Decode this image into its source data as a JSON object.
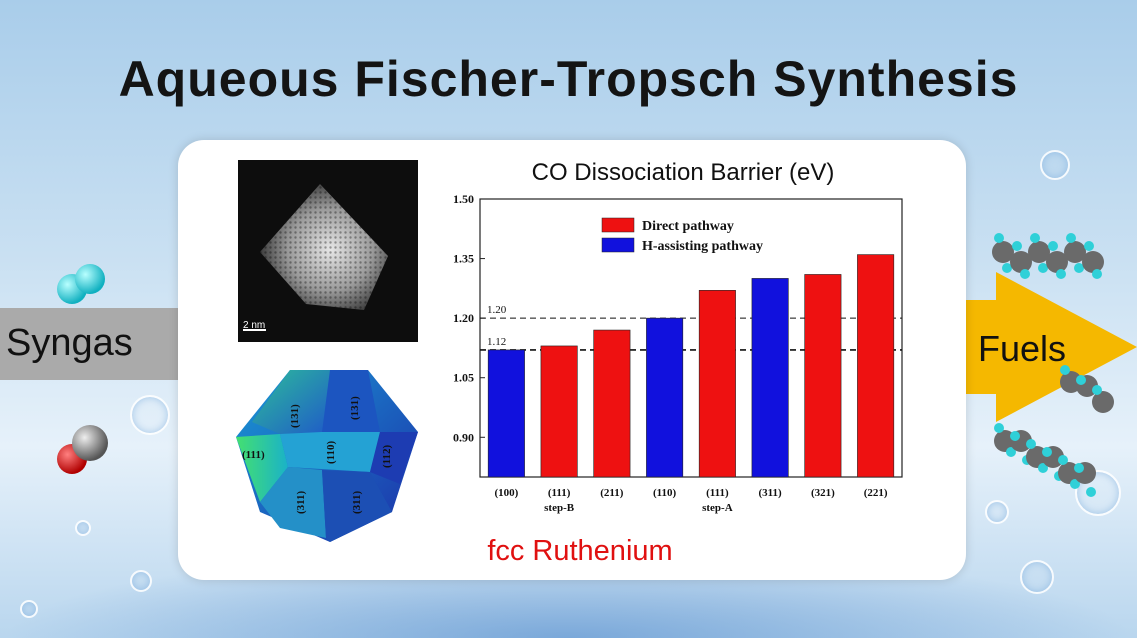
{
  "title": "Aqueous Fischer-Tropsch Synthesis",
  "left": {
    "label": "Syngas"
  },
  "right": {
    "label": "Fuels"
  },
  "tem": {
    "scale_label": "2 nm"
  },
  "crystal": {
    "facets": [
      "(111)",
      "(131)",
      "(131)",
      "(110)",
      "(112)",
      "(311)",
      "(311)"
    ]
  },
  "bottom_label": "fcc Ruthenium",
  "colors": {
    "direct": "#ee1111",
    "h_assisting": "#1111dd",
    "accent_arrow": "#f5b800"
  },
  "chart_data": {
    "type": "bar",
    "title": "CO Dissociation Barrier (eV)",
    "categories": [
      "(100)",
      "(111)",
      "(211)",
      "(110)",
      "(111)",
      "(311)",
      "(321)",
      "(221)"
    ],
    "sublabels": [
      "",
      "step-B",
      "",
      "",
      "step-A",
      "",
      "",
      ""
    ],
    "values": [
      1.12,
      1.13,
      1.17,
      1.2,
      1.27,
      1.3,
      1.31,
      1.36
    ],
    "pathway": [
      "H-assisting pathway",
      "Direct pathway",
      "Direct pathway",
      "H-assisting pathway",
      "Direct pathway",
      "H-assisting pathway",
      "Direct pathway",
      "Direct pathway"
    ],
    "legend": [
      "Direct pathway",
      "H-assisting pathway"
    ],
    "ylim": [
      0.8,
      1.5
    ],
    "yticks": [
      "0.90",
      "1.05",
      "1.20",
      "1.35",
      "1.50"
    ],
    "reference_lines": [
      {
        "value": 1.2,
        "label": "1.20"
      },
      {
        "value": 1.12,
        "label": "1.12"
      }
    ]
  }
}
